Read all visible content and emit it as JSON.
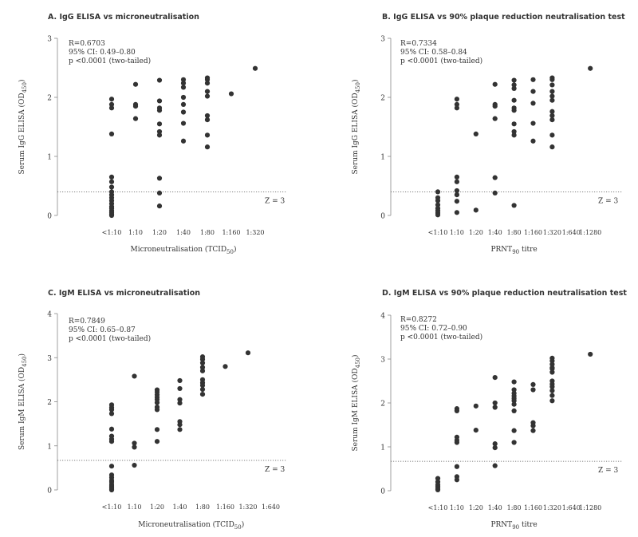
{
  "panels": [
    {
      "title": "A. IgG ELISA vs microneutralisation",
      "ylabel": "Serum IgG ELISA (OD",
      "ylabel_sub": "450",
      "ylabel_end": ")",
      "xlabel": "Microneutralisation (TCID",
      "xlabel_sub": "50",
      "xlabel_end": ")",
      "stats": [
        "R=0.6703",
        "95% CI: 0.49–0.80",
        "p <0.0001 (two-tailed)"
      ],
      "threshold_label": "Z = 3",
      "chart_data": {
        "type": "scatter",
        "categories": [
          "<1:10",
          "1:10",
          "1:20",
          "1:40",
          "1:80",
          "1:160",
          "1:320"
        ],
        "y_ticks": [
          0,
          1,
          2,
          3
        ],
        "ylim": [
          0,
          3
        ],
        "threshold": 0.4,
        "series": [
          [
            1.97,
            1.88,
            1.82,
            1.38,
            0.65,
            0.57,
            0.48,
            0.4,
            0.35,
            0.3,
            0.25,
            0.2,
            0.15,
            0.12,
            0.08,
            0.05,
            0.02,
            0.0
          ],
          [
            2.22,
            1.88,
            1.85,
            1.64
          ],
          [
            2.29,
            1.94,
            1.82,
            1.78,
            1.55,
            1.42,
            1.36,
            0.63,
            0.38,
            0.16
          ],
          [
            2.3,
            2.24,
            2.17,
            2.0,
            1.88,
            1.75,
            1.56,
            1.26
          ],
          [
            2.33,
            2.3,
            2.24,
            2.1,
            2.02,
            1.69,
            1.62,
            1.36,
            1.16
          ],
          [
            2.06
          ],
          [
            2.49
          ]
        ]
      }
    },
    {
      "title": "B. IgG ELISA vs 90% plaque reduction neutralisation test",
      "ylabel": "Serum IgG ELISA (OD",
      "ylabel_sub": "450",
      "ylabel_end": ")",
      "xlabel": "PRNT",
      "xlabel_sub": "90",
      "xlabel_end": " titre",
      "stats": [
        "R=0.7334",
        "95% CI: 0.58–0.84",
        "p <0.0001 (two-tailed)"
      ],
      "threshold_label": "Z = 3",
      "chart_data": {
        "type": "scatter",
        "categories": [
          "<1:10",
          "1:10",
          "1:20",
          "1:40",
          "1:80",
          "1:160",
          "1:320",
          "1:640",
          "1:1280"
        ],
        "y_ticks": [
          0,
          1,
          2,
          3
        ],
        "ylim": [
          0,
          3
        ],
        "threshold": 0.4,
        "series": [
          [
            0.4,
            0.3,
            0.25,
            0.18,
            0.12,
            0.08,
            0.04,
            0.01
          ],
          [
            1.97,
            1.88,
            1.82,
            0.65,
            0.57,
            0.42,
            0.35,
            0.24,
            0.05
          ],
          [
            1.38,
            0.09
          ],
          [
            2.22,
            1.88,
            1.85,
            1.64,
            0.64,
            0.38
          ],
          [
            2.29,
            2.21,
            2.15,
            1.95,
            1.82,
            1.78,
            1.55,
            1.42,
            1.36,
            0.17
          ],
          [
            2.3,
            2.1,
            1.9,
            1.56,
            1.26
          ],
          [
            2.33,
            2.3,
            2.21,
            2.1,
            2.02,
            1.95,
            1.76,
            1.69,
            1.62,
            1.36,
            1.16
          ],
          [],
          [
            2.49
          ]
        ]
      }
    },
    {
      "title": "C. IgM ELISA vs microneutralisation",
      "ylabel": "Serum IgM ELISA (OD",
      "ylabel_sub": "450",
      "ylabel_end": ")",
      "xlabel": "Microneutralisation (TCID",
      "xlabel_sub": "50",
      "xlabel_end": ")",
      "stats": [
        "R=0.7849",
        "95% CI: 0.65–0.87",
        "p <0.0001 (two-tailed)"
      ],
      "threshold_label": "Z = 3",
      "chart_data": {
        "type": "scatter",
        "categories": [
          "<1:10",
          "1:10",
          "1:20",
          "1:40",
          "1:80",
          "1:160",
          "1:320",
          "1:640"
        ],
        "y_ticks": [
          0,
          1,
          2,
          3,
          4
        ],
        "ylim": [
          0,
          4
        ],
        "threshold": 0.67,
        "series": [
          [
            1.93,
            1.87,
            1.82,
            1.73,
            1.38,
            1.22,
            1.15,
            1.1,
            0.54,
            0.34,
            0.28,
            0.22,
            0.18,
            0.13,
            0.09,
            0.06,
            0.03,
            0.0
          ],
          [
            2.58,
            1.06,
            0.97,
            0.56
          ],
          [
            2.27,
            2.22,
            2.16,
            2.1,
            2.05,
            1.98,
            1.88,
            1.82,
            1.37,
            1.1
          ],
          [
            2.48,
            2.3,
            2.05,
            1.97,
            1.55,
            1.48,
            1.37
          ],
          [
            3.02,
            2.96,
            2.88,
            2.78,
            2.7,
            2.5,
            2.43,
            2.37,
            2.28,
            2.17
          ],
          [
            2.8
          ],
          [
            3.11
          ],
          []
        ]
      }
    },
    {
      "title": "D. IgM ELISA vs 90% plaque reduction neutralisation test",
      "ylabel": "Serum IgM ELISA (OD",
      "ylabel_sub": "450",
      "ylabel_end": ")",
      "xlabel": "PRNT",
      "xlabel_sub": "90",
      "xlabel_end": " titre",
      "stats": [
        "R=0.8272",
        "95% CI: 0.72–0.90",
        "p <0.0001 (two-tailed)"
      ],
      "threshold_label": "Z = 3",
      "chart_data": {
        "type": "scatter",
        "categories": [
          "<1:10",
          "1:10",
          "1:20",
          "1:40",
          "1:80",
          "1:160",
          "1:320",
          "1:640",
          "1:1280"
        ],
        "y_ticks": [
          0,
          1,
          2,
          3,
          4
        ],
        "ylim": [
          0,
          4
        ],
        "threshold": 0.67,
        "series": [
          [
            0.28,
            0.2,
            0.14,
            0.1,
            0.06,
            0.02
          ],
          [
            1.87,
            1.82,
            1.22,
            1.15,
            1.1,
            0.55,
            0.32,
            0.25
          ],
          [
            1.93,
            1.38
          ],
          [
            2.58,
            2.0,
            1.9,
            1.07,
            0.98,
            0.57
          ],
          [
            2.48,
            2.3,
            2.22,
            2.16,
            2.1,
            2.05,
            1.97,
            1.82,
            1.37,
            1.1
          ],
          [
            2.42,
            2.3,
            1.55,
            1.48,
            1.37
          ],
          [
            3.02,
            2.96,
            2.88,
            2.8,
            2.78,
            2.7,
            2.5,
            2.43,
            2.37,
            2.28,
            2.17,
            2.05
          ],
          [],
          [
            3.11
          ]
        ]
      }
    }
  ]
}
